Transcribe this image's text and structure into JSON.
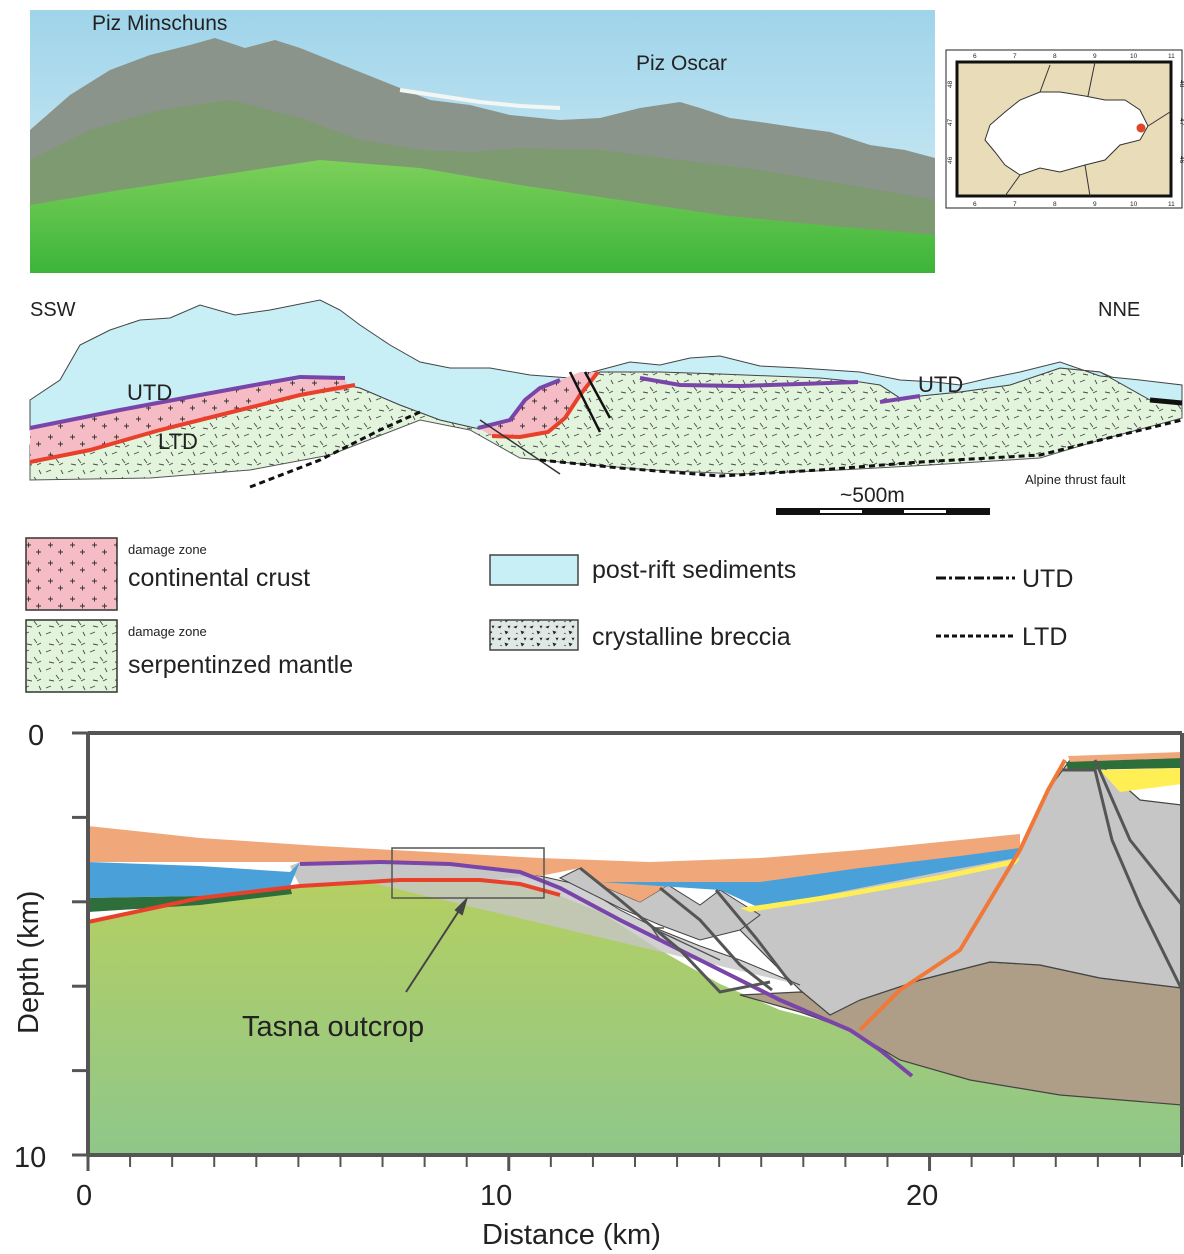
{
  "photo": {
    "peak_left": "Piz Minschuns",
    "peak_right": "Piz Oscar"
  },
  "inset_map": {
    "lon_ticks_top": [
      "6",
      "7",
      "8",
      "9",
      "10",
      "11"
    ],
    "lon_ticks_bottom": [
      "6",
      "7",
      "8",
      "9",
      "10",
      "11"
    ],
    "lat_ticks_left": [
      "48",
      "47",
      "46"
    ],
    "lat_ticks_right": [
      "48",
      "47",
      "46"
    ],
    "marker_color": "#e0452a"
  },
  "section": {
    "dir_left": "SSW",
    "dir_right": "NNE",
    "utd_label_1": "UTD",
    "utd_label_2": "UTD",
    "ltd_label": "LTD",
    "thrust_label": "Alpine thrust fault",
    "scale_label": "~500m"
  },
  "legend": {
    "crust_dz": "damage zone",
    "crust": "continental crust",
    "mantle_dz": "damage zone",
    "mantle": "serpentinzed mantle",
    "sediments": "post-rift sediments",
    "breccia": "crystalline breccia",
    "utd": "UTD",
    "ltd": "LTD"
  },
  "chart_data": {
    "type": "other",
    "xlabel": "Distance (km)",
    "ylabel": "Depth (km)",
    "xlim": [
      0,
      26
    ],
    "ylim": [
      0,
      10
    ],
    "x_ticks": [
      "0",
      "10",
      "20"
    ],
    "y_ticks": [
      "0",
      "10"
    ],
    "annotations": [
      {
        "text": "Tasna outcrop",
        "points_to": [
          9.0,
          3.9
        ]
      }
    ],
    "colors": {
      "mantle_top": "#b5cf62",
      "mantle_bottom": "#8fc78a",
      "orange_sediment": "#f0a87a",
      "blue_sediment": "#4aa0d8",
      "grey_blocks": "#c6c6c6",
      "brown_basement": "#ae9e88",
      "detachment": "#7a45a8",
      "fault_red": "#e8402a",
      "fault_orange": "#f07838"
    }
  }
}
